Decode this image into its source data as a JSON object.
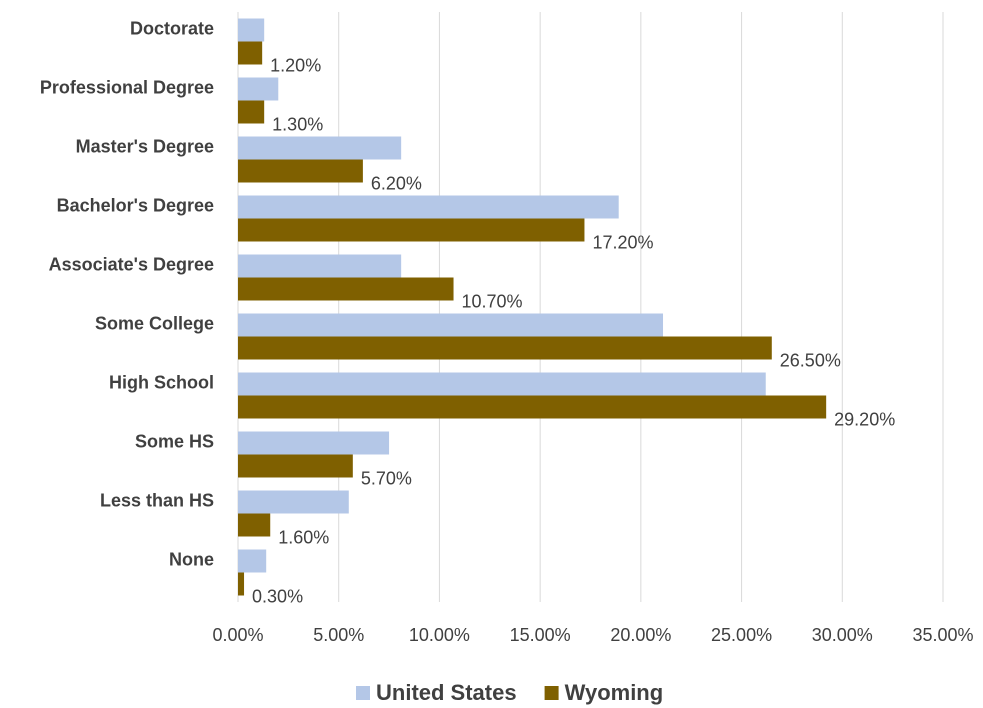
{
  "chart_data": {
    "type": "bar",
    "orientation": "horizontal",
    "categories": [
      "Doctorate",
      "Professional Degree",
      "Master's Degree",
      "Bachelor's Degree",
      "Associate's Degree",
      "Some College",
      "High School",
      "Some HS",
      "Less than HS",
      "None"
    ],
    "series": [
      {
        "name": "United States",
        "color": "#b4c7e7",
        "values": [
          1.3,
          2.0,
          8.1,
          18.9,
          8.1,
          21.1,
          26.2,
          7.5,
          5.5,
          1.4
        ]
      },
      {
        "name": "Wyoming",
        "color": "#7f6000",
        "values": [
          1.2,
          1.3,
          6.2,
          17.2,
          10.7,
          26.5,
          29.2,
          5.7,
          1.6,
          0.3
        ],
        "value_labels": [
          "1.20%",
          "1.30%",
          "6.20%",
          "17.20%",
          "10.70%",
          "26.50%",
          "29.20%",
          "5.70%",
          "1.60%",
          "0.30%"
        ]
      }
    ],
    "xlim": [
      0,
      35
    ],
    "xticks": [
      {
        "value": 0,
        "label": "0.00%"
      },
      {
        "value": 5,
        "label": "5.00%"
      },
      {
        "value": 10,
        "label": "10.00%"
      },
      {
        "value": 15,
        "label": "15.00%"
      },
      {
        "value": 20,
        "label": "20.00%"
      },
      {
        "value": 25,
        "label": "25.00%"
      },
      {
        "value": 30,
        "label": "30.00%"
      },
      {
        "value": 35,
        "label": "35.00%"
      }
    ],
    "grid": true,
    "legend": "bottom"
  }
}
